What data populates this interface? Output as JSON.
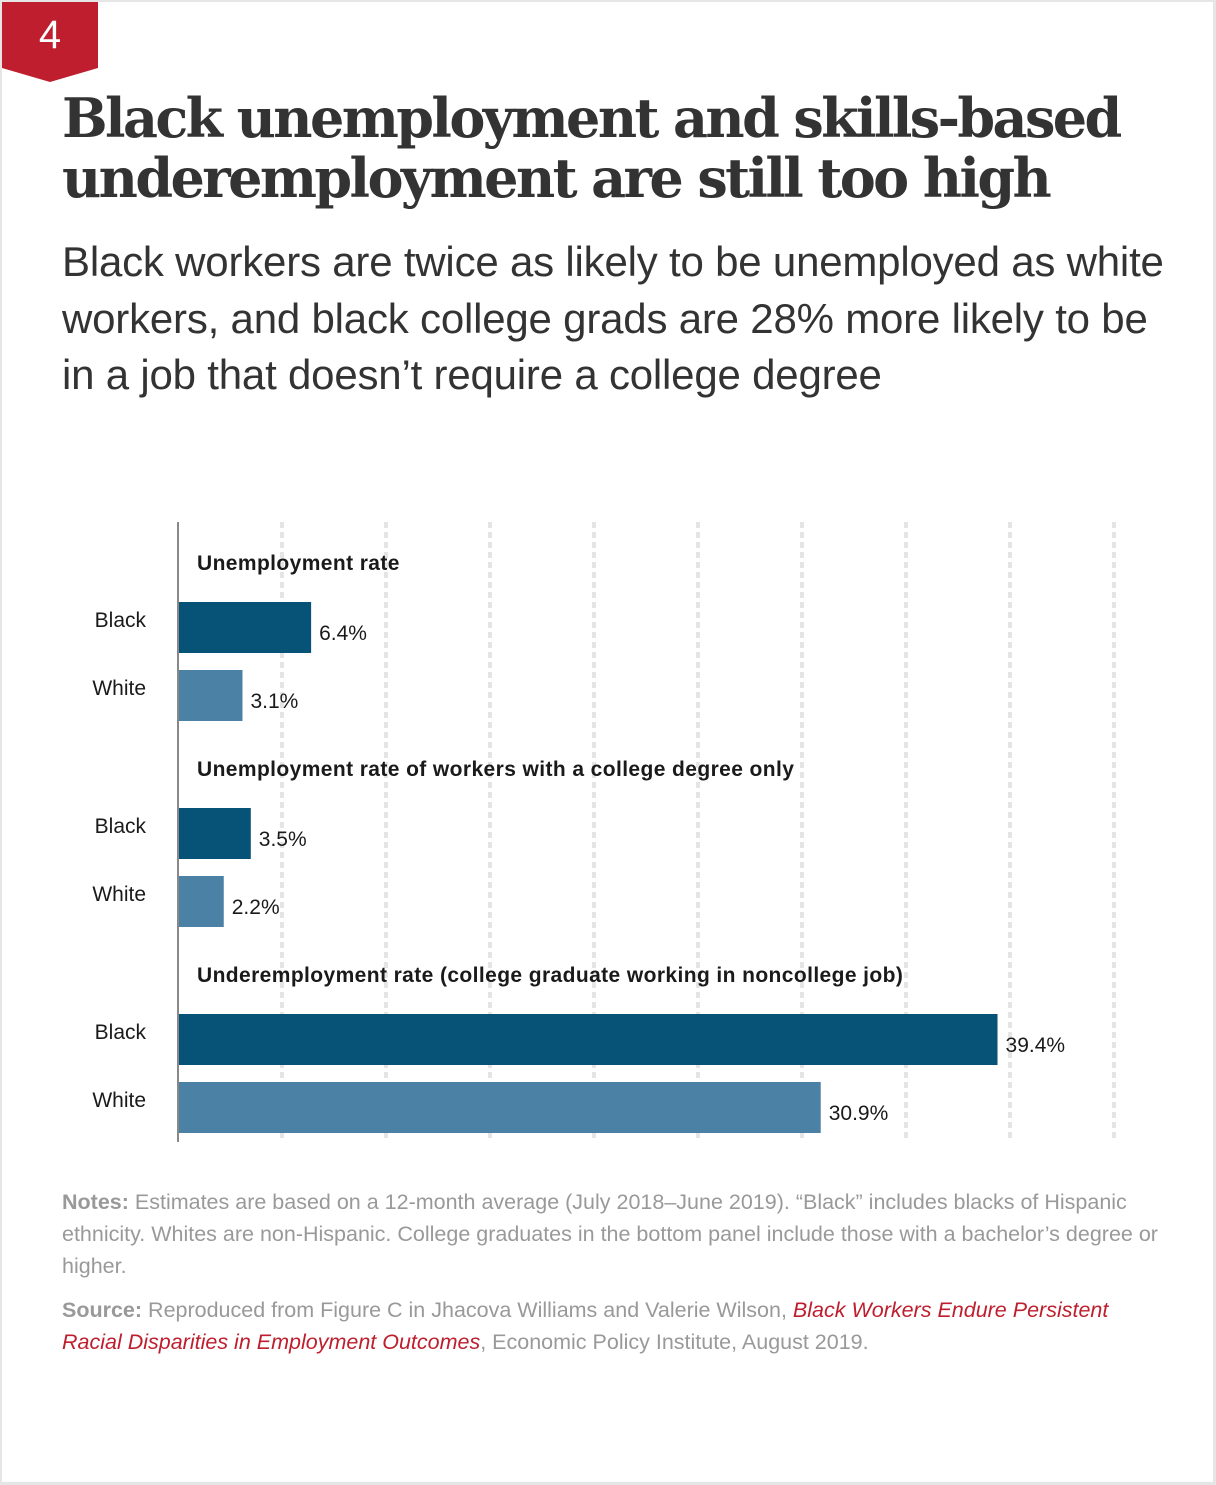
{
  "badge": {
    "number": "4",
    "color": "#be1e2d"
  },
  "header": {
    "title_line1": "Black unemployment and skills-based",
    "title_line2": "underemployment are still too high",
    "subtitle": "Black workers are twice as likely to be unemployed as white workers, and black college grads are 28% more likely to be in a job that doesn’t require a college degree"
  },
  "colors": {
    "black_bar": "#065377",
    "white_bar": "#4b81a4",
    "gridline": "#e5e5e5",
    "axis": "#888888",
    "text": "#1a1a1a"
  },
  "chart_data": {
    "type": "bar",
    "orientation": "horizontal",
    "xlim": [
      0,
      45
    ],
    "grid": true,
    "grid_step": 5,
    "value_suffix": "%",
    "panels": [
      {
        "title": "Unemployment rate",
        "categories": [
          "Black",
          "White"
        ],
        "values": [
          6.4,
          3.1
        ],
        "labels": [
          "6.4%",
          "3.1%"
        ]
      },
      {
        "title": "Unemployment rate of workers with a college degree only",
        "categories": [
          "Black",
          "White"
        ],
        "values": [
          3.5,
          2.2
        ],
        "labels": [
          "3.5%",
          "2.2%"
        ]
      },
      {
        "title": "Underemployment rate (college graduate working in noncollege job)",
        "categories": [
          "Black",
          "White"
        ],
        "values": [
          39.4,
          30.9
        ],
        "labels": [
          "39.4%",
          "30.9%"
        ]
      }
    ]
  },
  "footer": {
    "notes_label": "Notes:",
    "notes_text": " Estimates are based on a 12-month average (July 2018–June 2019). “Black” includes blacks of Hispanic ethnicity. Whites are non-Hispanic. College graduates in the bottom panel include those with a bachelor’s degree or higher.",
    "source_label": "Source:",
    "source_text": " Reproduced from Figure C in Jhacova Williams and Valerie Wilson, ",
    "source_link": "Black Workers Endure Persistent Racial Disparities in Employment Outcomes",
    "source_tail": ", Economic Policy Institute, August 2019."
  }
}
